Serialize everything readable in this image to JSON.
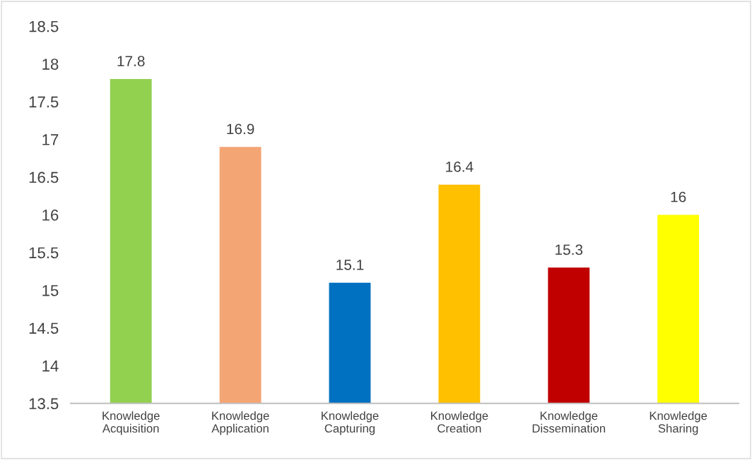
{
  "chart_data": {
    "type": "bar",
    "categories": [
      "Knowledge Acquisition",
      "Knowledge Application",
      "Knowledge Capturing",
      "Knowledge Creation",
      "Knowledge Dissemination",
      "Knowledge Sharing"
    ],
    "values": [
      17.8,
      16.9,
      15.1,
      16.4,
      15.3,
      16
    ],
    "colors": [
      "#92d050",
      "#f4a574",
      "#0070c0",
      "#ffc000",
      "#c00000",
      "#ffff00"
    ],
    "ylim": [
      13.5,
      18.5
    ],
    "yticks": [
      13.5,
      14,
      14.5,
      15,
      15.5,
      16,
      16.5,
      17,
      17.5,
      18,
      18.5
    ],
    "data_labels": true,
    "grid": false,
    "legend": false
  }
}
